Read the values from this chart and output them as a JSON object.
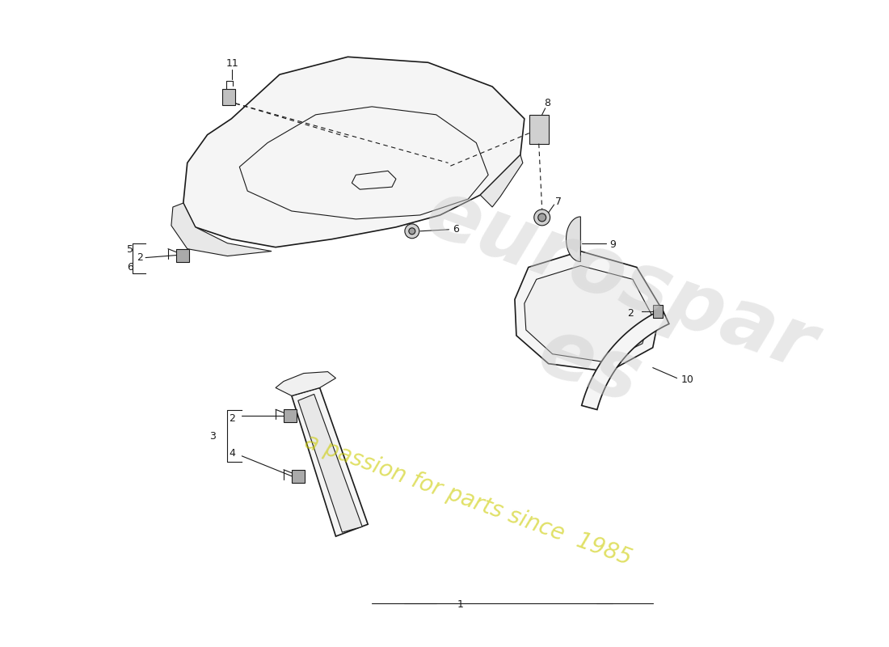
{
  "bg": "#ffffff",
  "lc": "#1a1a1a",
  "lw": 1.2,
  "lw_thin": 0.8,
  "watermark1": "eurospar·es",
  "watermark2": "a passion for parts since  1985",
  "wm1_color": "#c8c8c8",
  "wm2_color": "#d4d400",
  "parts_layout": "porsche_cayman_987_trims"
}
